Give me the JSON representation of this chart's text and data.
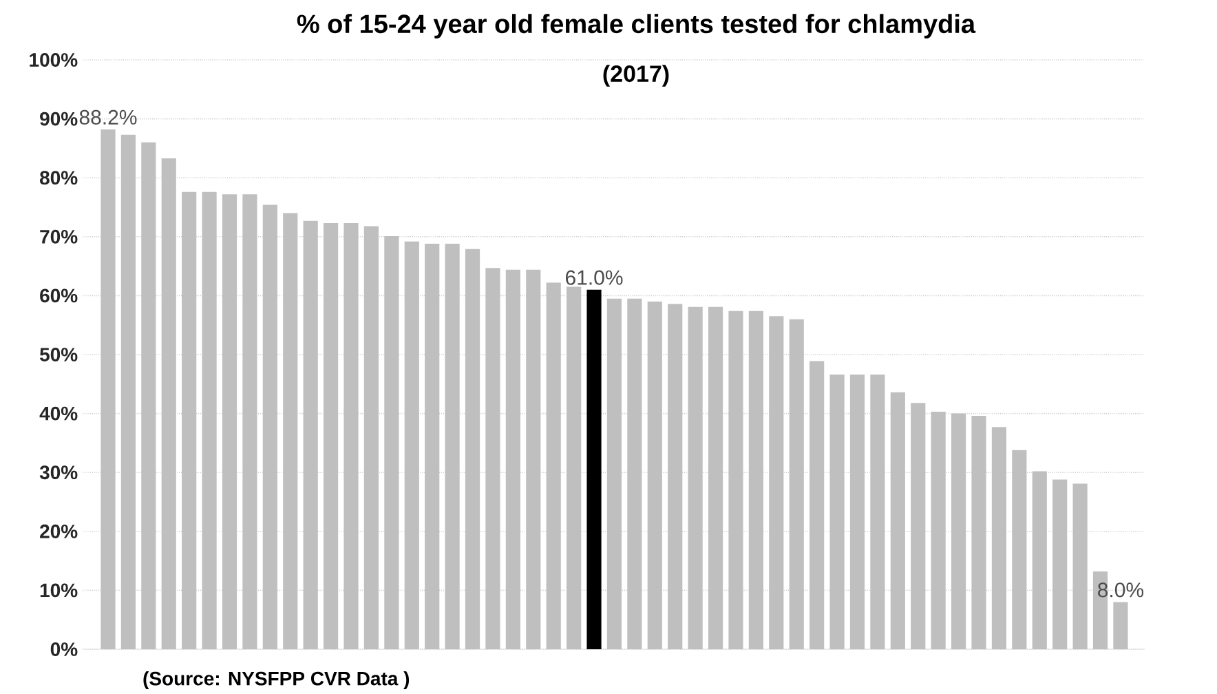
{
  "chart_data": {
    "type": "bar",
    "title": "% of 15-24 year old female clients tested for chlamydia",
    "subtitle": "(2017)",
    "categories": [
      null,
      null,
      null,
      null,
      null,
      null,
      null,
      null,
      null,
      null,
      null,
      null,
      null,
      null,
      null,
      null,
      null,
      null,
      null,
      null,
      null,
      null,
      null,
      null,
      null,
      null,
      null,
      null,
      null,
      null,
      null,
      null,
      null,
      null,
      null,
      null,
      null,
      null,
      null,
      null,
      null,
      null,
      null,
      null,
      null,
      null,
      null,
      null,
      null,
      null,
      null
    ],
    "values": [
      88.2,
      87.3,
      86.0,
      83.3,
      77.6,
      77.6,
      77.2,
      77.2,
      75.4,
      74.0,
      72.7,
      72.3,
      72.3,
      71.8,
      70.1,
      69.2,
      68.8,
      68.8,
      67.9,
      64.7,
      64.4,
      64.4,
      62.2,
      61.5,
      61.0,
      59.5,
      59.5,
      59.0,
      58.6,
      58.1,
      58.1,
      57.4,
      57.4,
      56.5,
      56.0,
      48.9,
      46.6,
      46.6,
      46.6,
      43.6,
      41.8,
      40.3,
      40.0,
      39.6,
      37.7,
      33.8,
      30.2,
      28.8,
      28.1,
      13.2,
      8.0
    ],
    "colors": [
      "#bfbfbf",
      "#bfbfbf",
      "#bfbfbf",
      "#bfbfbf",
      "#bfbfbf",
      "#bfbfbf",
      "#bfbfbf",
      "#bfbfbf",
      "#bfbfbf",
      "#bfbfbf",
      "#bfbfbf",
      "#bfbfbf",
      "#bfbfbf",
      "#bfbfbf",
      "#bfbfbf",
      "#bfbfbf",
      "#bfbfbf",
      "#bfbfbf",
      "#bfbfbf",
      "#bfbfbf",
      "#bfbfbf",
      "#bfbfbf",
      "#bfbfbf",
      "#bfbfbf",
      "#000000",
      "#bfbfbf",
      "#bfbfbf",
      "#bfbfbf",
      "#bfbfbf",
      "#bfbfbf",
      "#bfbfbf",
      "#bfbfbf",
      "#bfbfbf",
      "#bfbfbf",
      "#bfbfbf",
      "#bfbfbf",
      "#bfbfbf",
      "#bfbfbf",
      "#bfbfbf",
      "#bfbfbf",
      "#bfbfbf",
      "#bfbfbf",
      "#bfbfbf",
      "#bfbfbf",
      "#bfbfbf",
      "#bfbfbf",
      "#bfbfbf",
      "#bfbfbf",
      "#bfbfbf",
      "#bfbfbf",
      "#bfbfbf"
    ],
    "value_labels": [
      "88.2%",
      null,
      null,
      null,
      null,
      null,
      null,
      null,
      null,
      null,
      null,
      null,
      null,
      null,
      null,
      null,
      null,
      null,
      null,
      null,
      null,
      null,
      null,
      null,
      "61.0%",
      null,
      null,
      null,
      null,
      null,
      null,
      null,
      null,
      null,
      null,
      null,
      null,
      null,
      null,
      null,
      null,
      null,
      null,
      null,
      null,
      null,
      null,
      null,
      null,
      null,
      "8.0%"
    ],
    "ylim": [
      0,
      100
    ],
    "yticks": [
      {
        "value": 0,
        "label": "0%"
      },
      {
        "value": 10,
        "label": "10%"
      },
      {
        "value": 20,
        "label": "20%"
      },
      {
        "value": 30,
        "label": "30%"
      },
      {
        "value": 40,
        "label": "40%"
      },
      {
        "value": 50,
        "label": "50%"
      },
      {
        "value": 60,
        "label": "60%"
      },
      {
        "value": 70,
        "label": "70%"
      },
      {
        "value": 80,
        "label": "80%"
      },
      {
        "value": 90,
        "label": "90%"
      },
      {
        "value": 100,
        "label": "100%"
      }
    ],
    "grid": "y",
    "annotations": [
      "(Source:  NYSFPP CVR Data )"
    ]
  }
}
